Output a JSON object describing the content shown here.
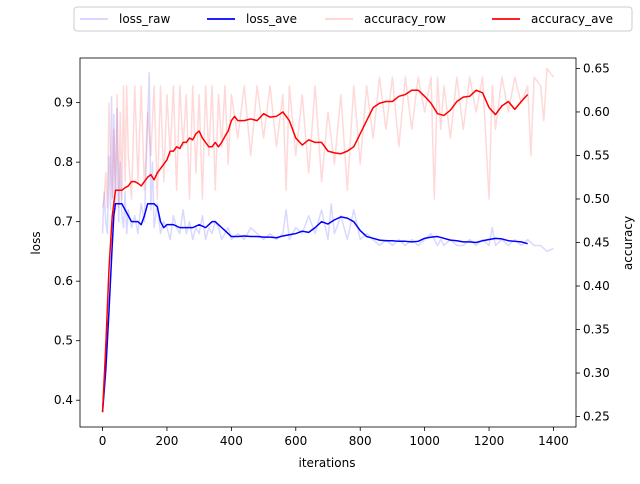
{
  "chart_data": {
    "type": "line",
    "title": "",
    "xlabel": "iterations",
    "ylabel": "loss",
    "y2label": "accuracy",
    "xlim": [
      -70,
      1470
    ],
    "ylim": [
      0.355,
      0.975
    ],
    "y2lim": [
      0.238,
      0.662
    ],
    "xticks": [
      0,
      200,
      400,
      600,
      800,
      1000,
      1200,
      1400
    ],
    "yticks": [
      0.4,
      0.5,
      0.6,
      0.7,
      0.8,
      0.9
    ],
    "y2ticks": [
      0.25,
      0.3,
      0.35,
      0.4,
      0.45,
      0.5,
      0.55,
      0.6,
      0.65
    ],
    "grid": false,
    "legend_position": "top, outside",
    "series": [
      {
        "name": "loss_raw",
        "axis": "left",
        "color": "#0000ff",
        "alpha": 0.15,
        "x": [
          0,
          5,
          10,
          15,
          20,
          25,
          28,
          32,
          35,
          40,
          45,
          50,
          55,
          60,
          65,
          70,
          75,
          80,
          90,
          100,
          110,
          120,
          130,
          140,
          145,
          150,
          155,
          160,
          170,
          180,
          190,
          200,
          210,
          220,
          230,
          240,
          250,
          260,
          270,
          280,
          290,
          300,
          310,
          320,
          330,
          340,
          350,
          360,
          370,
          380,
          390,
          400,
          420,
          440,
          460,
          480,
          500,
          520,
          540,
          560,
          570,
          580,
          600,
          620,
          640,
          660,
          680,
          700,
          710,
          720,
          740,
          760,
          780,
          800,
          820,
          840,
          860,
          880,
          900,
          920,
          940,
          960,
          980,
          1000,
          1020,
          1040,
          1050,
          1060,
          1080,
          1100,
          1120,
          1140,
          1160,
          1180,
          1200,
          1210,
          1220,
          1240,
          1260,
          1280,
          1300,
          1320,
          1340,
          1360,
          1380,
          1400
        ],
        "y": [
          0.68,
          0.75,
          0.7,
          0.68,
          0.81,
          0.72,
          0.91,
          0.74,
          0.88,
          0.72,
          0.89,
          0.7,
          0.8,
          0.71,
          0.69,
          0.75,
          0.68,
          0.72,
          0.69,
          0.71,
          0.68,
          0.73,
          0.7,
          0.87,
          0.95,
          0.72,
          0.8,
          0.69,
          0.73,
          0.68,
          0.7,
          0.69,
          0.67,
          0.71,
          0.69,
          0.68,
          0.72,
          0.68,
          0.7,
          0.67,
          0.69,
          0.68,
          0.71,
          0.67,
          0.69,
          0.68,
          0.7,
          0.69,
          0.67,
          0.68,
          0.69,
          0.67,
          0.68,
          0.67,
          0.69,
          0.68,
          0.67,
          0.68,
          0.67,
          0.68,
          0.72,
          0.67,
          0.69,
          0.68,
          0.71,
          0.68,
          0.72,
          0.67,
          0.73,
          0.68,
          0.71,
          0.67,
          0.72,
          0.67,
          0.68,
          0.67,
          0.66,
          0.67,
          0.66,
          0.67,
          0.66,
          0.67,
          0.66,
          0.67,
          0.68,
          0.66,
          0.67,
          0.66,
          0.67,
          0.66,
          0.66,
          0.67,
          0.66,
          0.67,
          0.66,
          0.69,
          0.66,
          0.67,
          0.66,
          0.67,
          0.66,
          0.67,
          0.66,
          0.66,
          0.65,
          0.655
        ]
      },
      {
        "name": "loss_ave",
        "axis": "left",
        "color": "#0000ff",
        "alpha": 1,
        "x": [
          0,
          10,
          20,
          30,
          35,
          40,
          50,
          60,
          70,
          80,
          90,
          100,
          110,
          120,
          130,
          140,
          150,
          160,
          170,
          180,
          190,
          200,
          220,
          240,
          260,
          280,
          300,
          320,
          330,
          340,
          350,
          360,
          370,
          380,
          400,
          420,
          440,
          460,
          480,
          500,
          520,
          540,
          560,
          580,
          600,
          620,
          640,
          660,
          680,
          700,
          720,
          740,
          760,
          780,
          800,
          820,
          840,
          860,
          880,
          900,
          920,
          940,
          960,
          980,
          1000,
          1020,
          1040,
          1060,
          1080,
          1100,
          1120,
          1140,
          1160,
          1180,
          1200,
          1220,
          1240,
          1260,
          1280,
          1300,
          1320
        ],
        "y": [
          0.38,
          0.45,
          0.55,
          0.66,
          0.71,
          0.73,
          0.73,
          0.73,
          0.72,
          0.71,
          0.7,
          0.7,
          0.7,
          0.695,
          0.71,
          0.73,
          0.73,
          0.73,
          0.725,
          0.7,
          0.69,
          0.695,
          0.695,
          0.69,
          0.69,
          0.69,
          0.695,
          0.69,
          0.695,
          0.7,
          0.7,
          0.695,
          0.69,
          0.685,
          0.675,
          0.675,
          0.676,
          0.675,
          0.675,
          0.674,
          0.674,
          0.673,
          0.676,
          0.678,
          0.68,
          0.684,
          0.682,
          0.69,
          0.7,
          0.696,
          0.703,
          0.708,
          0.706,
          0.7,
          0.685,
          0.675,
          0.672,
          0.669,
          0.668,
          0.668,
          0.667,
          0.667,
          0.666,
          0.667,
          0.672,
          0.674,
          0.675,
          0.672,
          0.669,
          0.668,
          0.666,
          0.666,
          0.665,
          0.668,
          0.67,
          0.672,
          0.671,
          0.668,
          0.667,
          0.666,
          0.663
        ]
      },
      {
        "name": "accuracy_row",
        "axis": "right",
        "color": "#ff0000",
        "alpha": 0.15,
        "x": [
          0,
          5,
          10,
          15,
          20,
          25,
          30,
          35,
          40,
          45,
          50,
          55,
          60,
          65,
          70,
          75,
          80,
          90,
          100,
          110,
          120,
          130,
          140,
          150,
          160,
          170,
          180,
          190,
          200,
          210,
          220,
          230,
          240,
          250,
          260,
          270,
          280,
          290,
          300,
          310,
          320,
          330,
          340,
          350,
          360,
          370,
          380,
          390,
          400,
          420,
          440,
          460,
          480,
          500,
          520,
          540,
          560,
          570,
          580,
          600,
          620,
          640,
          660,
          680,
          700,
          720,
          740,
          760,
          780,
          800,
          820,
          840,
          860,
          880,
          900,
          920,
          940,
          960,
          980,
          1000,
          1020,
          1030,
          1040,
          1050,
          1060,
          1080,
          1100,
          1120,
          1140,
          1160,
          1180,
          1200,
          1210,
          1220,
          1240,
          1260,
          1280,
          1300,
          1320,
          1330,
          1340,
          1360,
          1370,
          1380,
          1400
        ],
        "y": [
          0.49,
          0.5,
          0.53,
          0.49,
          0.61,
          0.54,
          0.5,
          0.58,
          0.51,
          0.62,
          0.49,
          0.6,
          0.5,
          0.63,
          0.52,
          0.63,
          0.55,
          0.5,
          0.63,
          0.52,
          0.63,
          0.51,
          0.6,
          0.55,
          0.63,
          0.5,
          0.63,
          0.52,
          0.62,
          0.55,
          0.63,
          0.51,
          0.63,
          0.56,
          0.62,
          0.5,
          0.63,
          0.53,
          0.62,
          0.5,
          0.63,
          0.55,
          0.63,
          0.51,
          0.62,
          0.56,
          0.63,
          0.54,
          0.62,
          0.57,
          0.63,
          0.55,
          0.63,
          0.57,
          0.63,
          0.56,
          0.62,
          0.51,
          0.63,
          0.55,
          0.62,
          0.53,
          0.63,
          0.52,
          0.6,
          0.54,
          0.62,
          0.51,
          0.63,
          0.54,
          0.63,
          0.57,
          0.64,
          0.58,
          0.64,
          0.56,
          0.64,
          0.58,
          0.64,
          0.6,
          0.64,
          0.5,
          0.64,
          0.58,
          0.63,
          0.57,
          0.64,
          0.58,
          0.64,
          0.6,
          0.64,
          0.5,
          0.63,
          0.58,
          0.64,
          0.6,
          0.64,
          0.61,
          0.63,
          0.55,
          0.64,
          0.63,
          0.59,
          0.65,
          0.64
        ]
      },
      {
        "name": "accuracy_ave",
        "axis": "right",
        "color": "#ff0000",
        "alpha": 1,
        "x": [
          0,
          10,
          20,
          30,
          40,
          50,
          60,
          70,
          80,
          90,
          100,
          110,
          120,
          130,
          140,
          150,
          160,
          170,
          180,
          190,
          200,
          210,
          220,
          230,
          240,
          250,
          260,
          270,
          280,
          290,
          300,
          310,
          320,
          330,
          340,
          350,
          360,
          370,
          380,
          390,
          400,
          410,
          420,
          440,
          460,
          480,
          500,
          520,
          540,
          560,
          580,
          600,
          620,
          640,
          660,
          680,
          700,
          720,
          740,
          760,
          780,
          800,
          820,
          840,
          860,
          880,
          900,
          920,
          940,
          960,
          980,
          1000,
          1020,
          1040,
          1060,
          1080,
          1100,
          1120,
          1140,
          1160,
          1180,
          1200,
          1220,
          1240,
          1260,
          1280,
          1300,
          1320
        ],
        "y": [
          0.255,
          0.33,
          0.42,
          0.48,
          0.51,
          0.51,
          0.51,
          0.513,
          0.515,
          0.52,
          0.52,
          0.518,
          0.515,
          0.52,
          0.525,
          0.528,
          0.522,
          0.53,
          0.535,
          0.54,
          0.545,
          0.555,
          0.555,
          0.56,
          0.558,
          0.565,
          0.565,
          0.57,
          0.568,
          0.575,
          0.578,
          0.57,
          0.565,
          0.56,
          0.56,
          0.565,
          0.56,
          0.565,
          0.572,
          0.578,
          0.59,
          0.595,
          0.59,
          0.59,
          0.592,
          0.59,
          0.598,
          0.594,
          0.595,
          0.6,
          0.59,
          0.57,
          0.562,
          0.568,
          0.565,
          0.565,
          0.555,
          0.553,
          0.552,
          0.555,
          0.56,
          0.575,
          0.59,
          0.605,
          0.61,
          0.612,
          0.612,
          0.618,
          0.62,
          0.625,
          0.625,
          0.618,
          0.61,
          0.598,
          0.596,
          0.602,
          0.612,
          0.617,
          0.618,
          0.625,
          0.622,
          0.605,
          0.597,
          0.607,
          0.612,
          0.603,
          0.612,
          0.62
        ]
      }
    ]
  }
}
